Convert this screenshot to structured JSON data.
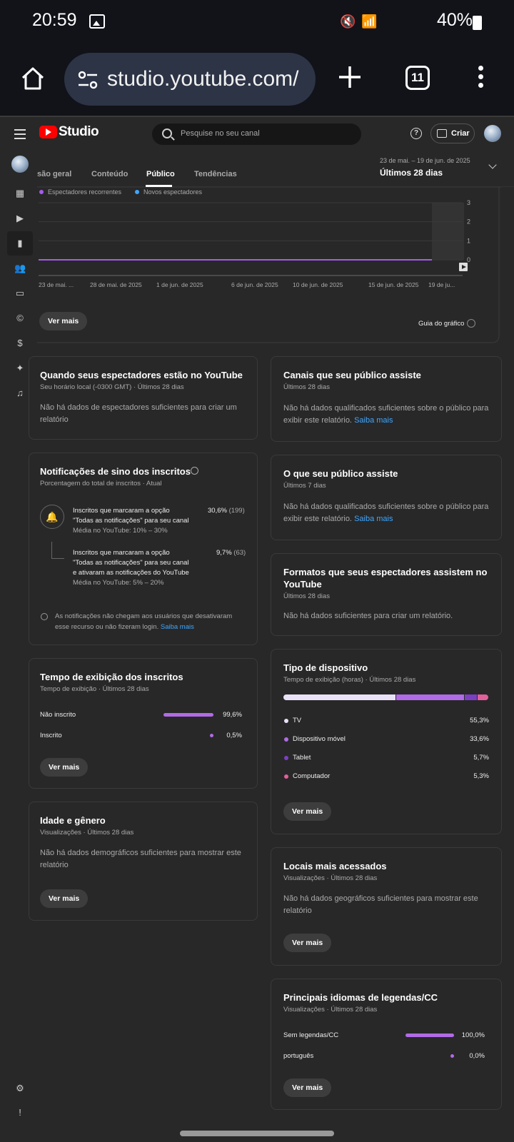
{
  "status_bar": {
    "time": "20:59",
    "battery": "40%"
  },
  "browser": {
    "url": "studio.youtube.com/",
    "tab_count": "11"
  },
  "header": {
    "logo_text": "Studio",
    "search_placeholder": "Pesquise no seu canal",
    "create_label": "Criar"
  },
  "tabs": [
    {
      "label": "são geral"
    },
    {
      "label": "Conteúdo"
    },
    {
      "label": "Público"
    },
    {
      "label": "Tendências"
    }
  ],
  "date_range": {
    "range": "23 de mai. – 19 de jun. de 2025",
    "label": "Últimos 28 dias"
  },
  "chart_data": {
    "type": "line",
    "title": "",
    "xlabel": "",
    "ylabel": "",
    "legend": [
      "Espectadores recorrentes",
      "Novos espectadores"
    ],
    "legend_colors": [
      "#a35cf0",
      "#3ea6ff"
    ],
    "x_tick_labels": [
      "23 de mai. ...",
      "28 de mai. de 2025",
      "1 de jun. de 2025",
      "6 de jun. de 2025",
      "10 de jun. de 2025",
      "15 de jun. de 2025",
      "19 de ju..."
    ],
    "y_ticks": [
      "0",
      "1",
      "2",
      "3"
    ],
    "ylim": [
      0,
      3
    ],
    "series": [
      {
        "name": "Espectadores recorrentes",
        "values": [
          0,
          0,
          0,
          0,
          0,
          0,
          0
        ]
      },
      {
        "name": "Novos espectadores",
        "values": [
          0,
          0,
          0,
          0,
          0,
          0,
          0
        ]
      }
    ],
    "more_button": "Ver mais",
    "guide_label": "Guia do gráfico"
  },
  "when_watching": {
    "title": "Quando seus espectadores estão no YouTube",
    "subtitle": "Seu horário local (-0300 GMT) · Últimos 28 dias",
    "body": "Não há dados de espectadores suficientes para criar um relatório"
  },
  "bell": {
    "title": "Notificações de sino dos inscritos",
    "subtitle": "Porcentagem do total de inscritos · Atual",
    "row1_line1": "Inscritos que marcaram a opção",
    "row1_line2": "\"Todas as notificações\" para seu canal",
    "row1_avg": "Média no YouTube: 10% – 30%",
    "row1_pct": "30,6%",
    "row1_count": "(199)",
    "row2_line1": "Inscritos que marcaram a opção",
    "row2_line2": "\"Todas as notificações\" para seu canal",
    "row2_line3": "e ativaram as notificações do YouTube",
    "row2_avg": "Média no YouTube: 5% – 20%",
    "row2_pct": "9,7%",
    "row2_count": "(63)",
    "note_line1": "As notificações não chegam aos usuários que desativaram",
    "note_line2": "esse recurso ou não fizeram login.",
    "note_link": "Saiba mais"
  },
  "sub_watch": {
    "title": "Tempo de exibição dos inscritos",
    "subtitle": "Tempo de exibição · Últimos 28 dias",
    "rows": [
      {
        "label": "Não inscrito",
        "value": "99,6%",
        "fraction": 0.996
      },
      {
        "label": "Inscrito",
        "value": "0,5%",
        "fraction": 0.005
      }
    ],
    "button": "Ver mais"
  },
  "age_gender": {
    "title": "Idade e gênero",
    "subtitle": "Visualizações · Últimos 28 dias",
    "body": "Não há dados demográficos suficientes para mostrar este relatório",
    "button": "Ver mais"
  },
  "channels_watched": {
    "title": "Canais que seu público assiste",
    "subtitle": "Últimos 28 dias",
    "body": "Não há dados qualificados suficientes sobre o público para exibir este relatório.",
    "link": "Saiba mais"
  },
  "what_watched": {
    "title": "O que seu público assiste",
    "subtitle": "Últimos 7 dias",
    "body": "Não há dados qualificados suficientes sobre o público para exibir este relatório.",
    "link": "Saiba mais"
  },
  "formats": {
    "title_line1": "Formatos que seus espectadores assistem no",
    "title_line2": "YouTube",
    "subtitle": "Últimos 28 dias",
    "body": "Não há dados suficientes para criar um relatório."
  },
  "device": {
    "title": "Tipo de dispositivo",
    "subtitle": "Tempo de exibição (horas) · Últimos 28 dias",
    "rows": [
      {
        "label": "TV",
        "value": "55,3%",
        "fraction": 0.553,
        "color": "#e9e1f7"
      },
      {
        "label": "Dispositivo móvel",
        "value": "33,6%",
        "fraction": 0.336,
        "color": "#b16be6"
      },
      {
        "label": "Tablet",
        "value": "5,7%",
        "fraction": 0.057,
        "color": "#7d3fc2"
      },
      {
        "label": "Computador",
        "value": "5,3%",
        "fraction": 0.053,
        "color": "#e0609a"
      }
    ],
    "button": "Ver mais"
  },
  "locations": {
    "title": "Locais mais acessados",
    "subtitle": "Visualizações · Últimos 28 dias",
    "body": "Não há dados geográficos suficientes para mostrar este relatório",
    "button": "Ver mais"
  },
  "captions": {
    "title": "Principais idiomas de legendas/CC",
    "subtitle": "Visualizações · Últimos 28 dias",
    "rows": [
      {
        "label": "Sem legendas/CC",
        "value": "100,0%",
        "fraction": 1.0
      },
      {
        "label": "português",
        "value": "0,0%",
        "fraction": 0.0
      }
    ],
    "button": "Ver mais"
  },
  "colors": {
    "accent_purple": "#b16be6",
    "link_blue": "#3ea6ff",
    "yt_red": "#ff0000"
  }
}
